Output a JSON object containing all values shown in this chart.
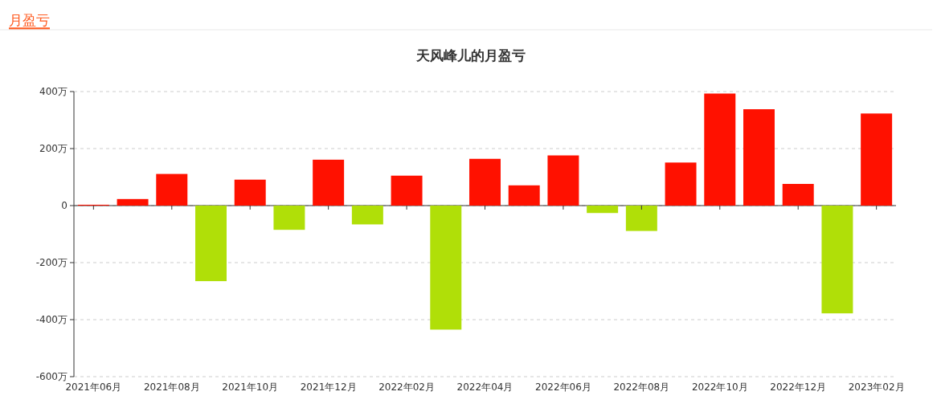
{
  "chart_data": {
    "type": "bar",
    "title": "天风峰儿的月盈亏",
    "annotations": [
      "月盈亏"
    ],
    "categories": [
      "2021年06月",
      null,
      "2021年08月",
      null,
      "2021年10月",
      null,
      "2021年12月",
      null,
      "2022年02月",
      null,
      "2022年04月",
      null,
      "2022年06月",
      null,
      "2022年08月",
      null,
      "2022年10月",
      null,
      "2022年12月",
      null,
      "2023年02月"
    ],
    "values": [
      3,
      23,
      111,
      -265,
      91,
      -85,
      161,
      -66,
      105,
      -435,
      164,
      71,
      176,
      -26,
      -89,
      151,
      393,
      338,
      76,
      -378,
      323
    ],
    "colors": [
      "#ff1100",
      "#ff1100",
      "#ff1100",
      "#b0df08",
      "#ff1100",
      "#b0df08",
      "#ff1100",
      "#b0df08",
      "#ff1100",
      "#b0df08",
      "#ff1100",
      "#ff1100",
      "#ff1100",
      "#b0df08",
      "#b0df08",
      "#ff1100",
      "#ff1100",
      "#ff1100",
      "#ff1100",
      "#b0df08",
      "#ff1100"
    ],
    "ylim": [
      -600,
      400
    ],
    "yticks": [
      {
        "value": -600,
        "label": "-600万"
      },
      {
        "value": -400,
        "label": "-400万"
      },
      {
        "value": -200,
        "label": "-200万"
      },
      0,
      {
        "value": 200,
        "label": "200万"
      },
      {
        "value": 400,
        "label": "400万"
      }
    ],
    "grid": "y"
  }
}
